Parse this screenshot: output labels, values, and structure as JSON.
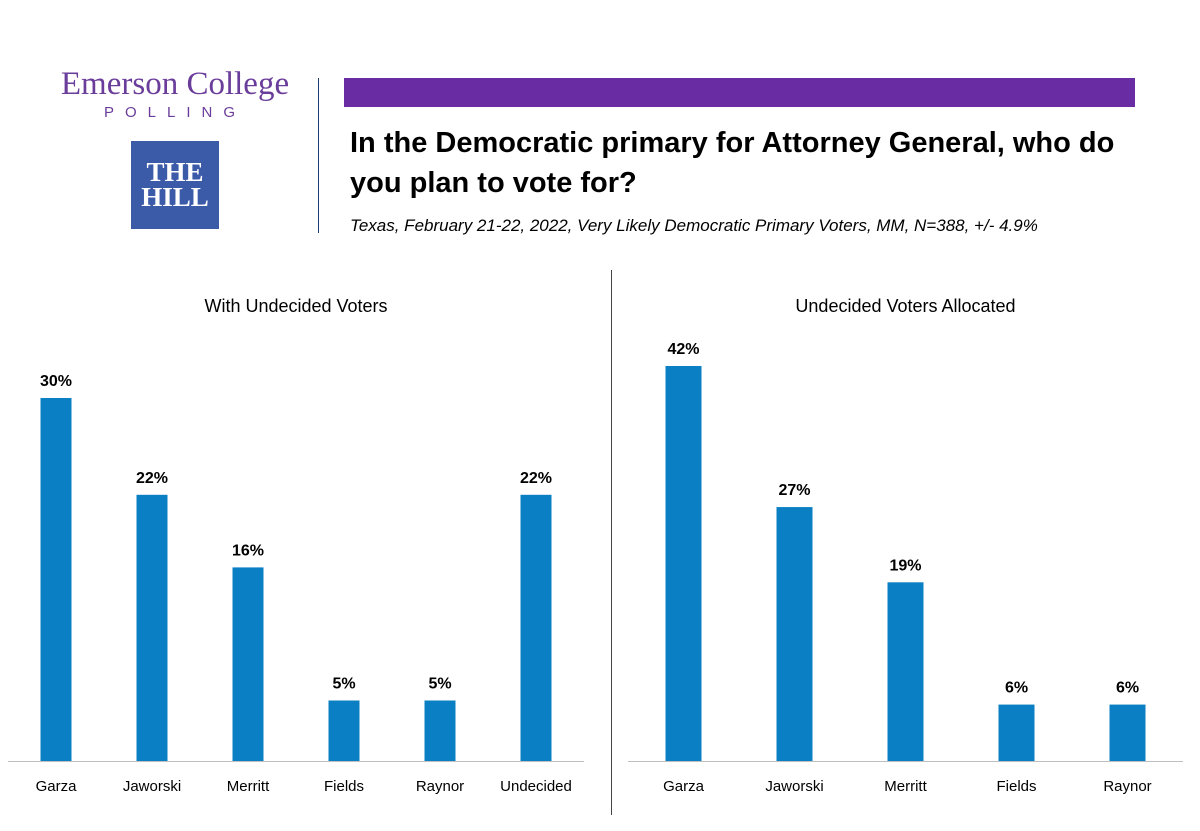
{
  "header": {
    "logo_line1": "Emerson College",
    "logo_line2": "POLLING",
    "logo2_line1": "THE",
    "logo2_line2": "HILL",
    "title": "In the Democratic primary for Attorney General, who do you plan to vote for?",
    "subtitle": "Texas, February 21-22, 2022, Very Likely Democratic Primary Voters, MM, N=388, +/- 4.9%"
  },
  "colors": {
    "accent_bar": "#6a2ca2",
    "bar": "#0a7fc4",
    "axis": "#bfbfbf"
  },
  "chart_data": [
    {
      "type": "bar",
      "title": "With Undecided Voters",
      "categories": [
        "Garza",
        "Jaworski",
        "Merritt",
        "Fields",
        "Raynor",
        "Undecided"
      ],
      "values": [
        30,
        22,
        16,
        5,
        5,
        22
      ],
      "value_labels": [
        "30%",
        "22%",
        "16%",
        "5%",
        "5%",
        "22%"
      ],
      "ylim": [
        0,
        30
      ]
    },
    {
      "type": "bar",
      "title": "Undecided Voters Allocated",
      "categories": [
        "Garza",
        "Jaworski",
        "Merritt",
        "Fields",
        "Raynor"
      ],
      "values": [
        42,
        27,
        19,
        6,
        6
      ],
      "value_labels": [
        "42%",
        "27%",
        "19%",
        "6%",
        "6%"
      ],
      "ylim": [
        0,
        42
      ]
    }
  ]
}
